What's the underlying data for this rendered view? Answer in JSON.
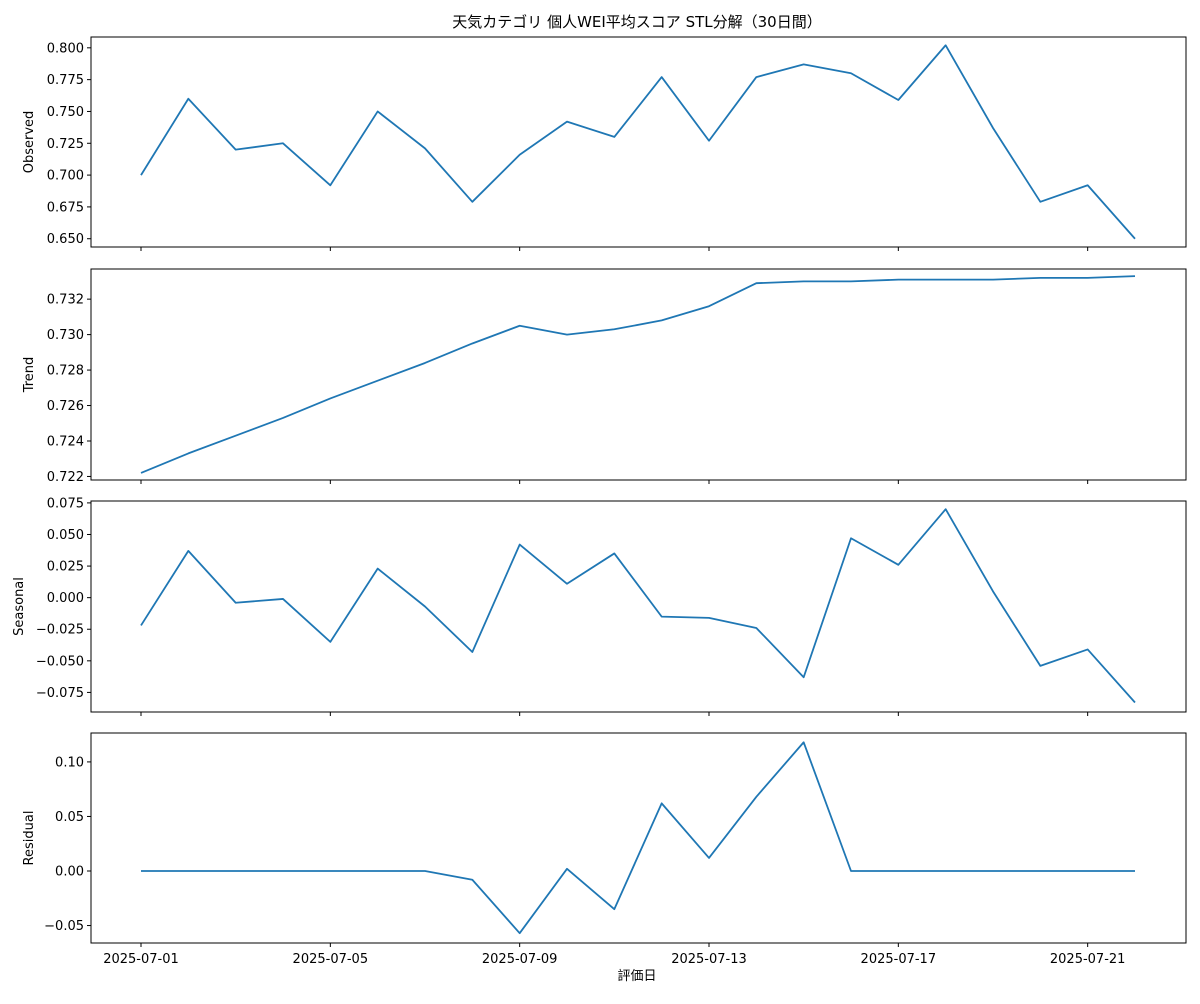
{
  "chart_data": {
    "type": "line",
    "title": "天気カテゴリ 個人WEI平均スコア STL分解（30日間）",
    "xlabel": "評価日",
    "x": [
      "2025-07-01",
      "2025-07-02",
      "2025-07-03",
      "2025-07-04",
      "2025-07-05",
      "2025-07-06",
      "2025-07-07",
      "2025-07-08",
      "2025-07-09",
      "2025-07-10",
      "2025-07-11",
      "2025-07-12",
      "2025-07-13",
      "2025-07-14",
      "2025-07-15",
      "2025-07-16",
      "2025-07-17",
      "2025-07-18",
      "2025-07-19",
      "2025-07-20",
      "2025-07-21",
      "2025-07-22"
    ],
    "x_ticks": [
      "2025-07-01",
      "2025-07-05",
      "2025-07-09",
      "2025-07-13",
      "2025-07-17",
      "2025-07-21"
    ],
    "line_color": "#1f77b4",
    "grid": false,
    "panels": [
      {
        "ylabel": "Observed",
        "ylim": [
          0.6435,
          0.8085
        ],
        "yticks": [
          "0.650",
          "0.675",
          "0.700",
          "0.725",
          "0.750",
          "0.775",
          "0.800"
        ],
        "values": [
          0.7,
          0.76,
          0.72,
          0.725,
          0.692,
          0.75,
          0.721,
          0.679,
          0.716,
          0.742,
          0.73,
          0.777,
          0.727,
          0.777,
          0.787,
          0.78,
          0.759,
          0.802,
          0.737,
          0.679,
          0.692,
          0.65
        ]
      },
      {
        "ylabel": "Trend",
        "ylim": [
          0.7218,
          0.7337
        ],
        "yticks": [
          "0.722",
          "0.724",
          "0.726",
          "0.728",
          "0.730",
          "0.732"
        ],
        "values": [
          0.7222,
          0.7233,
          0.7243,
          0.7253,
          0.7264,
          0.7274,
          0.7284,
          0.7295,
          0.7305,
          0.73,
          0.7303,
          0.7308,
          0.7316,
          0.7329,
          0.733,
          0.733,
          0.7331,
          0.7331,
          0.7331,
          0.7332,
          0.7332,
          0.7333
        ]
      },
      {
        "ylabel": "Seasonal",
        "ylim": [
          -0.0905,
          0.0765
        ],
        "yticks": [
          "−0.075",
          "−0.050",
          "−0.025",
          "0.000",
          "0.025",
          "0.050",
          "0.075"
        ],
        "values": [
          -0.022,
          0.037,
          -0.004,
          -0.001,
          -0.035,
          0.023,
          -0.007,
          -0.043,
          0.042,
          0.011,
          0.035,
          -0.015,
          -0.016,
          -0.024,
          -0.063,
          0.047,
          0.026,
          0.07,
          0.005,
          -0.054,
          -0.041,
          -0.083
        ]
      },
      {
        "ylabel": "Residual",
        "ylim": [
          -0.066,
          0.1265
        ],
        "yticks": [
          "−0.05",
          "0.00",
          "0.05",
          "0.10"
        ],
        "values": [
          0.0,
          0.0,
          0.0,
          0.0,
          0.0,
          0.0,
          0.0,
          -0.008,
          -0.057,
          0.002,
          -0.035,
          0.062,
          0.012,
          0.068,
          0.118,
          0.0,
          0.0,
          0.0,
          0.0,
          0.0,
          0.0,
          0.0
        ]
      }
    ]
  }
}
